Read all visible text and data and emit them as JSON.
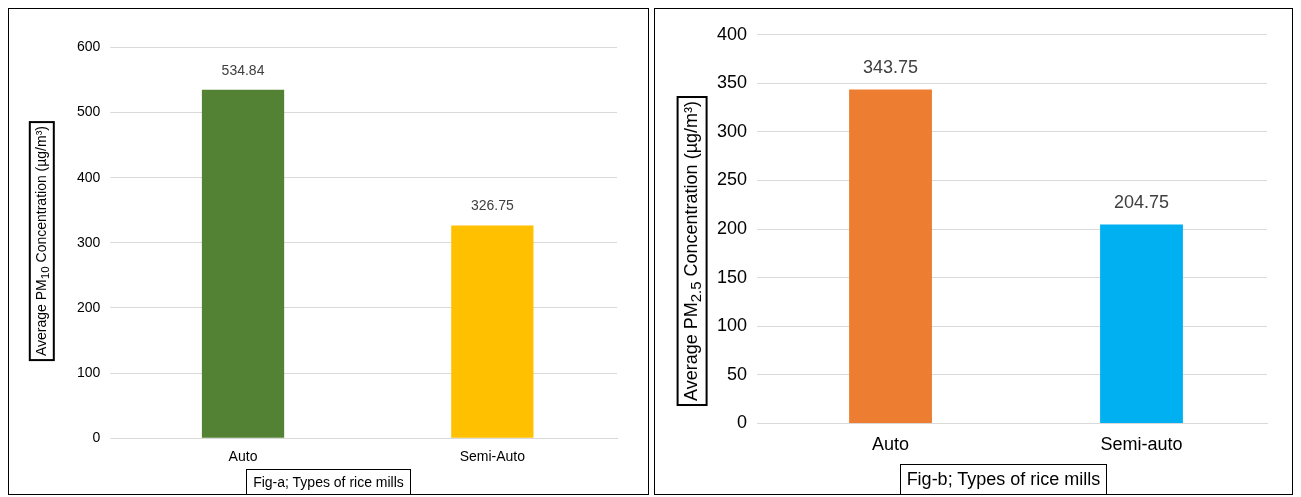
{
  "chart_data": [
    {
      "type": "bar",
      "categories": [
        "Auto",
        "Semi-Auto"
      ],
      "values": [
        534.84,
        326.75
      ],
      "colors": [
        "#548235",
        "#ffc000"
      ],
      "xlabel": "Fig-a; Types of rice mills",
      "ylabel": "Average PM$_{10}$ Concentration (µg/m³)",
      "ylim": [
        0,
        600
      ],
      "yticks": [
        0,
        100,
        200,
        300,
        400,
        500,
        600
      ],
      "grid": "y",
      "data_labels": true,
      "legend": false
    },
    {
      "type": "bar",
      "categories": [
        "Auto",
        "Semi-auto"
      ],
      "values": [
        343.75,
        204.75
      ],
      "colors": [
        "#ed7d31",
        "#00b0f0"
      ],
      "xlabel": "Fig-b; Types of rice mills",
      "ylabel": "Average PM$_{2.5}$ Concentration (µg/m³)",
      "ylim": [
        0,
        400
      ],
      "yticks": [
        0,
        50,
        100,
        150,
        200,
        250,
        300,
        350,
        400
      ],
      "grid": "y",
      "data_labels": true,
      "legend": false
    }
  ]
}
